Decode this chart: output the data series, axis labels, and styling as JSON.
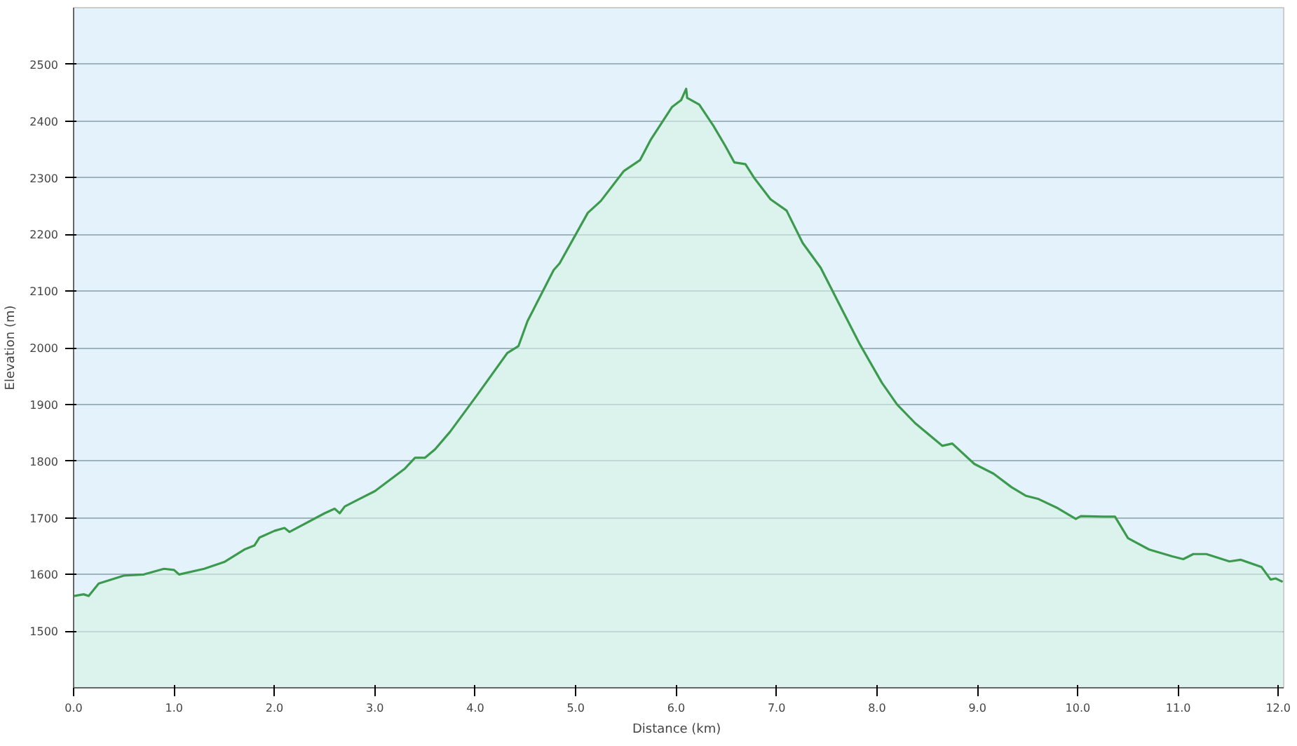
{
  "chart_data": {
    "type": "area",
    "xlabel": "Distance  (km)",
    "ylabel": "Elevation (m)",
    "xlim": [
      0,
      12.05
    ],
    "ylim": [
      1400,
      2600
    ],
    "xticks": [
      {
        "value": 0,
        "label": "0.0"
      },
      {
        "value": 1,
        "label": "1.0"
      },
      {
        "value": 2,
        "label": "2.0"
      },
      {
        "value": 3,
        "label": "3.0"
      },
      {
        "value": 4,
        "label": "4.0"
      },
      {
        "value": 5,
        "label": "5.0"
      },
      {
        "value": 6,
        "label": "6.0"
      },
      {
        "value": 7,
        "label": "7.0"
      },
      {
        "value": 8,
        "label": "8.0"
      },
      {
        "value": 9,
        "label": "9.0"
      },
      {
        "value": 10,
        "label": "10.0"
      },
      {
        "value": 11,
        "label": "11.0"
      },
      {
        "value": 12,
        "label": "12.0"
      }
    ],
    "yticks": [
      1500,
      1600,
      1700,
      1800,
      1900,
      2000,
      2100,
      2200,
      2300,
      2400,
      2500
    ],
    "grid": "y",
    "series": [
      {
        "color": "#3c9a4e",
        "x": [
          0,
          0.1,
          0.15,
          0.25,
          0.5,
          0.7,
          0.9,
          1.0,
          1.05,
          1.3,
          1.5,
          1.7,
          1.8,
          1.85,
          2.0,
          2.1,
          2.15,
          2.5,
          2.6,
          2.65,
          2.7,
          3.0,
          3.3,
          3.4,
          3.5,
          3.6,
          3.75,
          4.02,
          4.32,
          4.43,
          4.52,
          4.78,
          4.84,
          5.12,
          5.25,
          5.48,
          5.64,
          5.75,
          5.96,
          6.05,
          6.1,
          6.11,
          6.23,
          6.37,
          6.49,
          6.58,
          6.69,
          6.78,
          6.94,
          7.1,
          7.26,
          7.44,
          7.65,
          7.83,
          8.05,
          8.2,
          8.38,
          8.65,
          8.75,
          8.97,
          9.16,
          9.34,
          9.48,
          9.61,
          9.8,
          9.98,
          10.03,
          10.25,
          10.37,
          10.5,
          10.71,
          10.94,
          11.05,
          11.15,
          11.28,
          11.51,
          11.62,
          11.83,
          11.92,
          11.97,
          12.04
        ],
        "values": [
          1562,
          1565,
          1562,
          1584,
          1598,
          1600,
          1610,
          1608,
          1600,
          1610,
          1622,
          1644,
          1651,
          1665,
          1677,
          1682,
          1675,
          1708,
          1716,
          1708,
          1720,
          1747,
          1787,
          1806,
          1806,
          1821,
          1852,
          1917,
          1991,
          2003,
          2047,
          2137,
          2149,
          2238,
          2259,
          2312,
          2331,
          2368,
          2425,
          2437,
          2457,
          2441,
          2429,
          2392,
          2356,
          2327,
          2324,
          2299,
          2262,
          2242,
          2185,
          2141,
          2068,
          2006,
          1938,
          1900,
          1867,
          1827,
          1831,
          1795,
          1778,
          1754,
          1739,
          1733,
          1717,
          1698,
          1703,
          1702,
          1702,
          1664,
          1644,
          1632,
          1627,
          1636,
          1636,
          1623,
          1626,
          1613,
          1591,
          1593,
          1587
        ]
      }
    ]
  }
}
